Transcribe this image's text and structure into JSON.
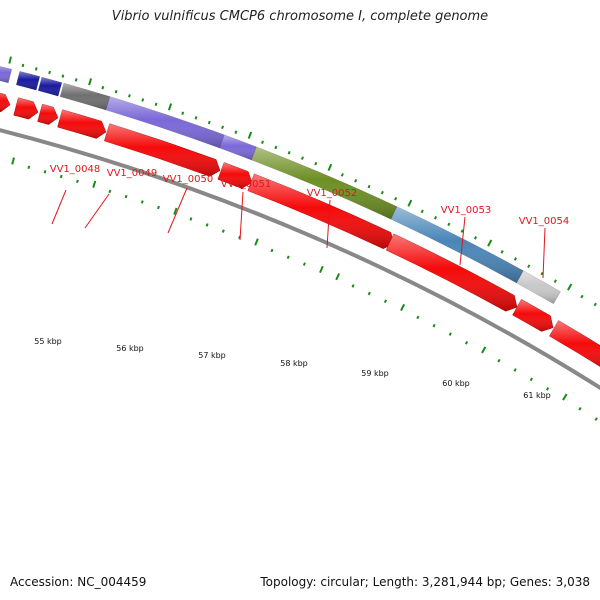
{
  "title": "Vibrio vulnificus CMCP6 chromosome I, complete genome",
  "footer": {
    "accession": "Accession: NC_004459",
    "summary": "Topology: circular; Length: 3,281,944 bp; Genes: 3,038"
  },
  "colors": {
    "cds": "#f50a0a",
    "backbone": "#888888",
    "gc_skew": "#1a8a1a",
    "label": "#e0161b"
  },
  "gene_labels": [
    "VV1_0048",
    "VV1_0049",
    "VV1_0050",
    "VV1_0051",
    "VV1_0052",
    "VV1_0053",
    "VV1_0054"
  ],
  "kbp_labels": [
    "55 kbp",
    "56 kbp",
    "57 kbp",
    "58 kbp",
    "59 kbp",
    "60 kbp",
    "61 kbp"
  ]
}
